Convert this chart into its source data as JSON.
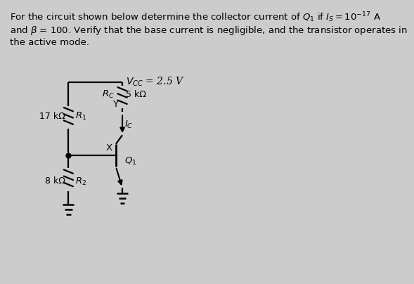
{
  "background_color": "#cccccc",
  "title_line1": "For the circuit shown below determine the collector current of $Q_1$ if $I_S = 10^{-17}$ A",
  "title_line2": "and $\\beta$ = 100. Verify that the base current is negligible, and the transistor operates in",
  "title_line3": "the active mode.",
  "vcc_label": "$V_{CC}$ = 2.5 V",
  "r1_label": "17 kΩ",
  "r1_name": "$R_1$",
  "rc_label": "$R_C$",
  "rc_val": "5 kΩ",
  "r2_label": "8 kΩ",
  "r2_name": "$R_2$",
  "q1_label": "$Q_1$",
  "ic_label": "$I_C$",
  "x_label": "X",
  "y_label": "Y",
  "line_color": "#000000",
  "font_size_title": 9.5,
  "font_size_labels": 9.5
}
